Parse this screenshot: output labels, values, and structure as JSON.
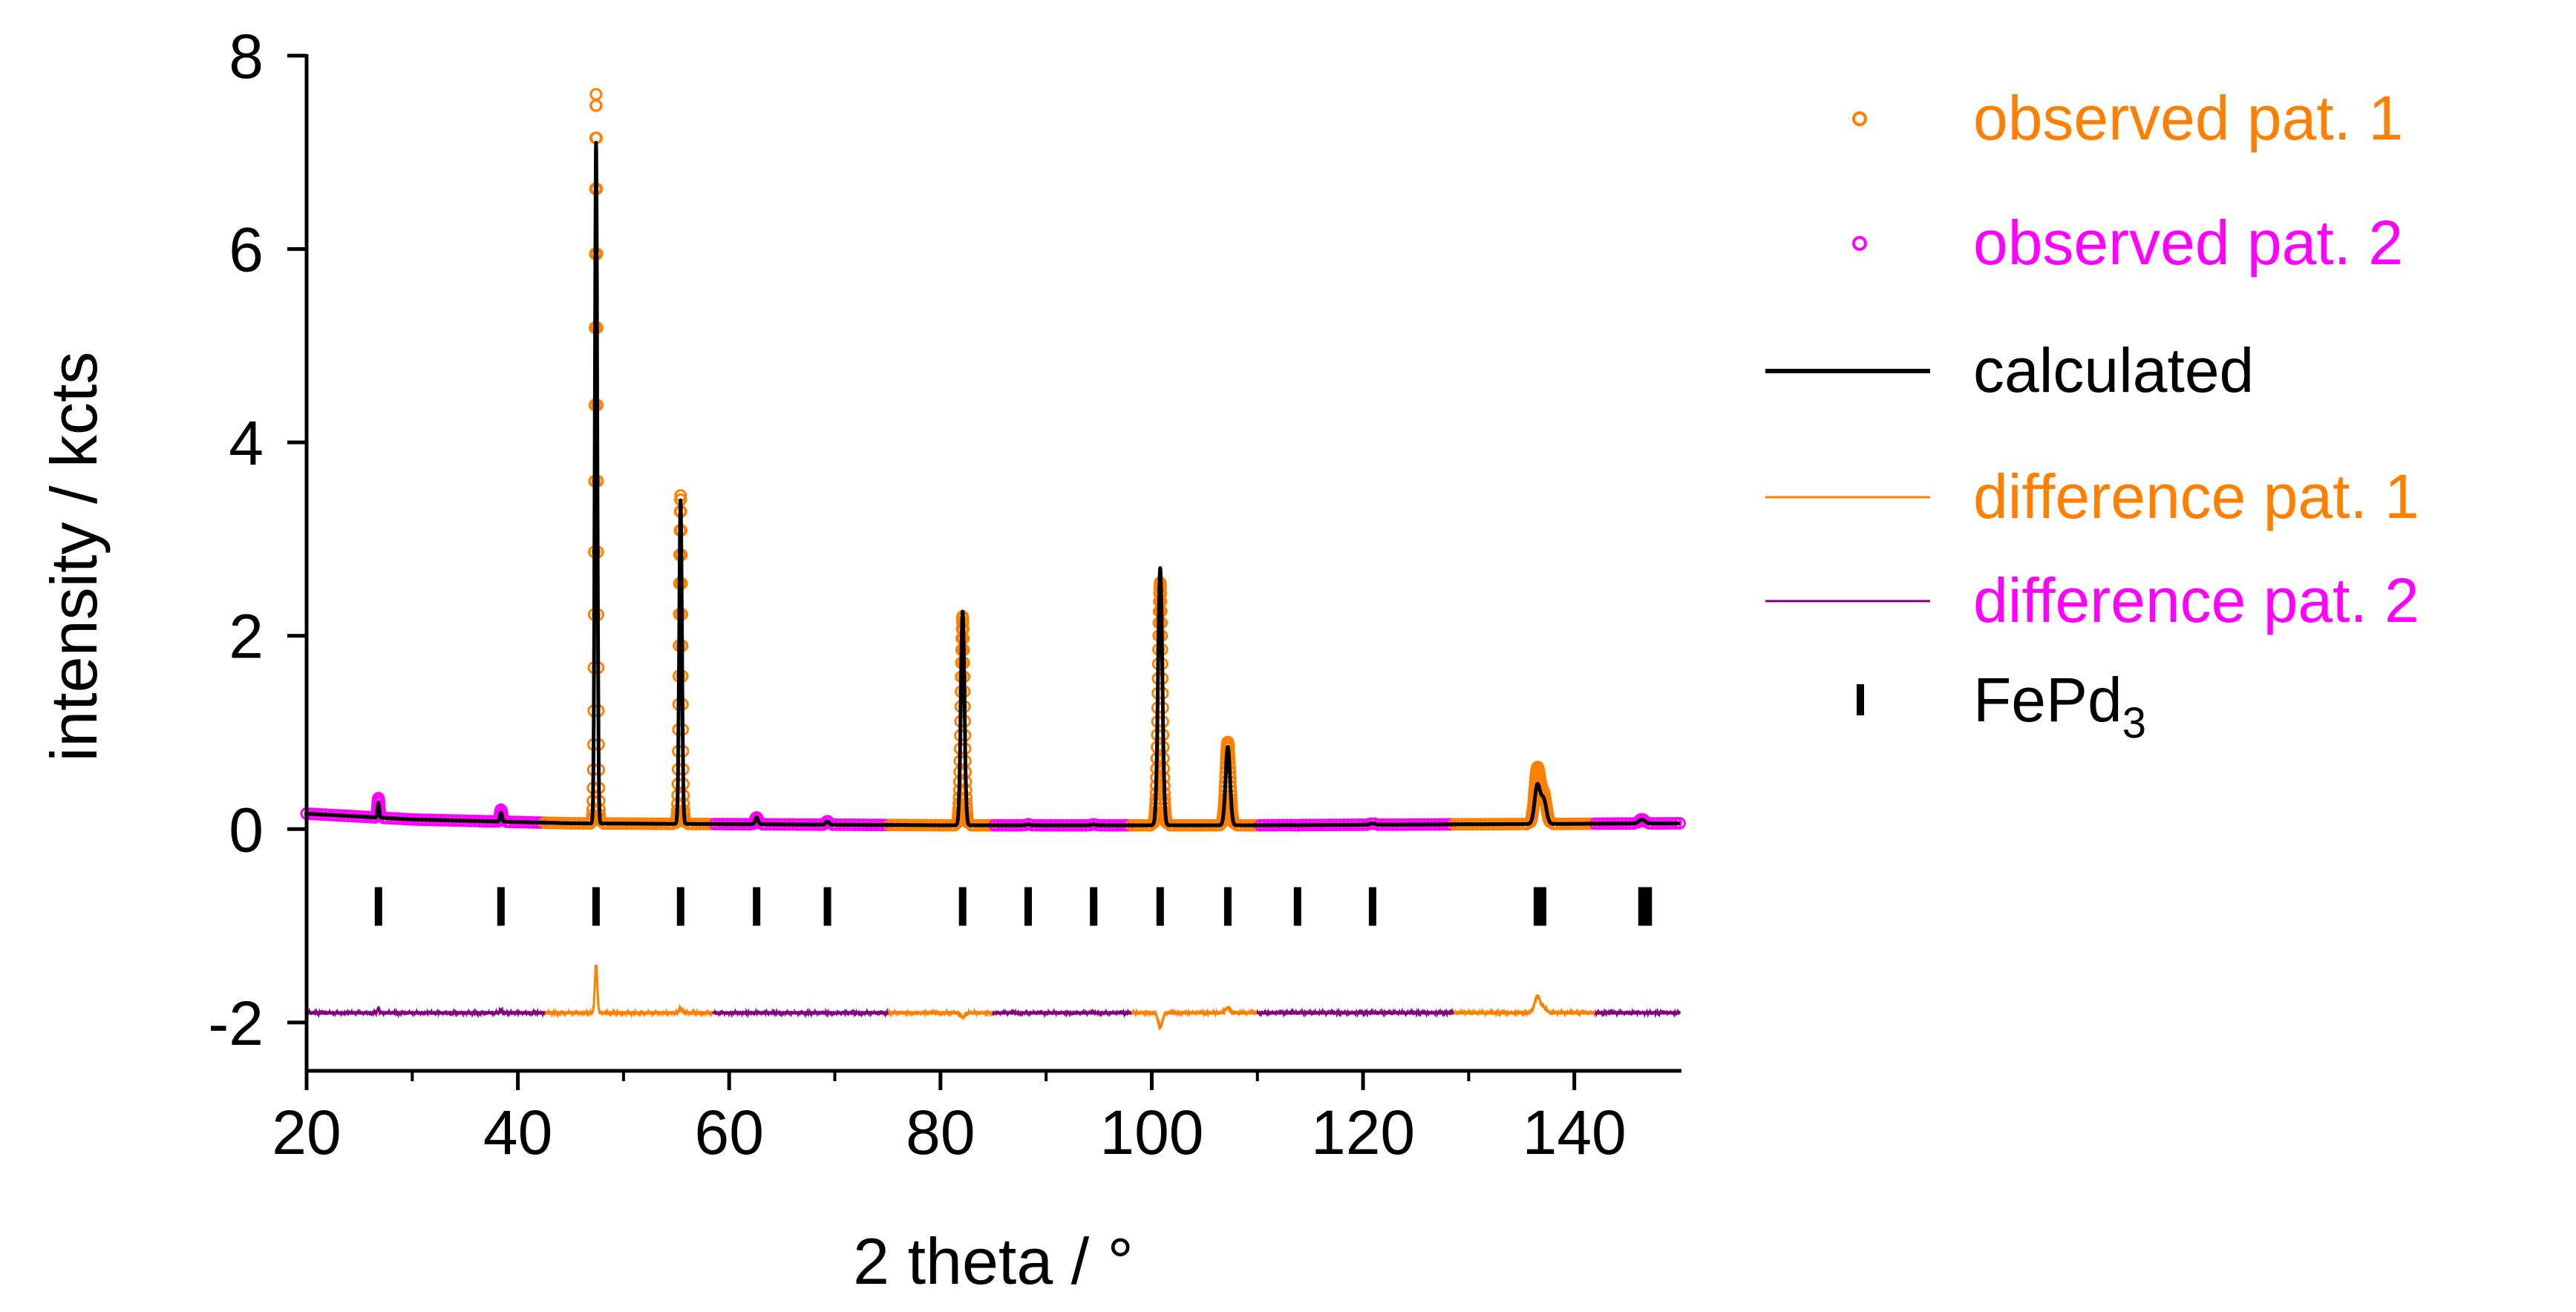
{
  "chart_data": {
    "type": "line",
    "title": "",
    "xlabel": "2 theta / °",
    "ylabel": "intensity / kcts",
    "xlim": [
      20,
      150
    ],
    "ylim": [
      -2.5,
      8
    ],
    "xticks": [
      20,
      40,
      60,
      80,
      100,
      120,
      140
    ],
    "xtick_labels": [
      "20",
      "40",
      "60",
      "80",
      "100",
      "120",
      "140"
    ],
    "yticks": [
      8,
      6,
      4,
      2,
      0,
      -2
    ],
    "ytick_labels": [
      "8",
      "6",
      "4",
      "2",
      "0",
      "-2"
    ],
    "grid": false,
    "legend_position": "right",
    "colors": {
      "pattern1": "#ff8000",
      "pattern2": "#ff00ff",
      "calculated": "#000000",
      "difference2": "#800080",
      "ticks": "#000000"
    },
    "segments": {
      "pattern1_ranges": [
        [
          42.5,
          58.5
        ],
        [
          75,
          85
        ],
        [
          98,
          110
        ],
        [
          128.5,
          142
        ]
      ],
      "pattern2_ranges": [
        [
          20,
          42.5
        ],
        [
          58.5,
          75
        ],
        [
          85,
          98
        ],
        [
          110,
          128.5
        ],
        [
          142,
          150
        ]
      ]
    },
    "background": {
      "x": [
        20,
        30,
        45,
        80,
        110,
        150
      ],
      "y": [
        0.16,
        0.1,
        0.06,
        0.04,
        0.04,
        0.06
      ]
    },
    "peaks": [
      {
        "x": 26.8,
        "observed": 0.32,
        "calculated": 0.27
      },
      {
        "x": 38.4,
        "observed": 0.2,
        "calculated": 0.17
      },
      {
        "x": 47.4,
        "observed": 7.6,
        "calculated": 7.1
      },
      {
        "x": 55.4,
        "observed": 3.45,
        "calculated": 3.4
      },
      {
        "x": 62.6,
        "observed": 0.12,
        "calculated": 0.12
      },
      {
        "x": 69.3,
        "observed": 0.08,
        "calculated": 0.08
      },
      {
        "x": 82.1,
        "observed": 2.2,
        "calculated": 2.25
      },
      {
        "x": 88.3,
        "observed": 0.05,
        "calculated": 0.05
      },
      {
        "x": 94.5,
        "observed": 0.05,
        "calculated": 0.05
      },
      {
        "x": 100.8,
        "observed": 2.55,
        "calculated": 2.7
      },
      {
        "x": 107.2,
        "observed": 0.9,
        "calculated": 0.85
      },
      {
        "x": 113.8,
        "observed": 0.04,
        "calculated": 0.04
      },
      {
        "x": 120.9,
        "observed": 0.06,
        "calculated": 0.06
      },
      {
        "x": 136.5,
        "observed": 0.62,
        "calculated": 0.45
      },
      {
        "x": 137.1,
        "observed": 0.35,
        "calculated": 0.3
      },
      {
        "x": 146.4,
        "observed": 0.1,
        "calculated": 0.1
      }
    ],
    "difference_offset": -1.9,
    "fepd3_reflections": [
      26.8,
      38.4,
      47.4,
      55.4,
      62.6,
      69.3,
      82.1,
      88.3,
      94.5,
      100.8,
      107.2,
      113.8,
      120.9,
      136.5,
      137.0,
      146.4,
      147.0
    ],
    "reflection_tick_y": -0.8,
    "series": [
      {
        "name": "observed pat. 1",
        "color": "#ff8000",
        "marker": "circle"
      },
      {
        "name": "observed pat. 2",
        "color": "#ff00ff",
        "marker": "circle"
      },
      {
        "name": "calculated",
        "color": "#000000",
        "marker": "line"
      },
      {
        "name": "difference pat. 1",
        "color": "#ff8000",
        "marker": "line"
      },
      {
        "name": "difference pat. 2",
        "color": "#800080",
        "marker": "line"
      },
      {
        "name": "FePd",
        "subscript": "3",
        "color": "#000000",
        "marker": "bar"
      }
    ]
  }
}
